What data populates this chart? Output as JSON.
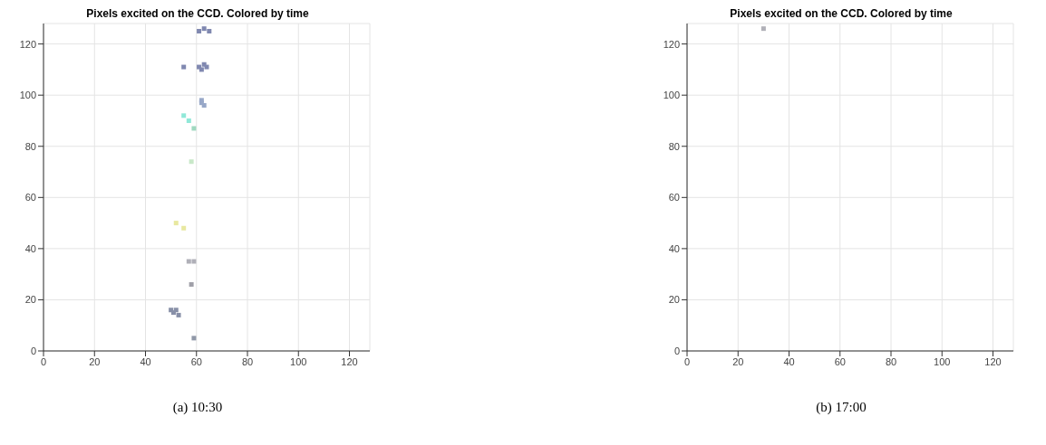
{
  "chart_data": [
    {
      "type": "scatter",
      "title": "Pixels excited on the CCD. Colored by time",
      "annotations": [
        "(a) 10:30"
      ],
      "x": [
        61,
        63,
        65,
        55,
        61,
        62,
        63,
        64,
        62,
        63,
        62,
        55,
        57,
        59,
        58,
        52,
        55,
        57,
        59,
        58,
        50,
        51,
        52,
        53,
        59
      ],
      "values": [
        125,
        126,
        125,
        111,
        111,
        110,
        112,
        111,
        98,
        96,
        97,
        92,
        90,
        87,
        74,
        50,
        48,
        35,
        35,
        26,
        16,
        15,
        16,
        14,
        5
      ],
      "colors": [
        "#8088b0",
        "#8088b0",
        "#8088b0",
        "#8088b0",
        "#8088b0",
        "#8088b0",
        "#8088b0",
        "#8088b0",
        "#98a8c8",
        "#98a8c8",
        "#98a8c8",
        "#90e8d8",
        "#90e8d8",
        "#a0d8c0",
        "#c8e8c8",
        "#e8e8a0",
        "#e8e8a0",
        "#b0b0b8",
        "#b0b0b8",
        "#a0a0a8",
        "#8890a8",
        "#8890a8",
        "#8890a8",
        "#8890a8",
        "#9098a8"
      ],
      "xlim": [
        0,
        128
      ],
      "ylim": [
        0,
        128
      ],
      "xticks": [
        0,
        20,
        40,
        60,
        80,
        100,
        120
      ],
      "yticks": [
        0,
        20,
        40,
        60,
        80,
        100,
        120
      ],
      "grid": true,
      "marker": "square"
    },
    {
      "type": "scatter",
      "title": "Pixels excited on the CCD. Colored by time",
      "annotations": [
        "(b) 17:00"
      ],
      "x": [
        30
      ],
      "values": [
        126
      ],
      "colors": [
        "#b0b0b8"
      ],
      "xlim": [
        0,
        128
      ],
      "ylim": [
        0,
        128
      ],
      "xticks": [
        0,
        20,
        40,
        60,
        80,
        100,
        120
      ],
      "yticks": [
        0,
        20,
        40,
        60,
        80,
        100,
        120
      ],
      "grid": true,
      "marker": "square"
    }
  ]
}
